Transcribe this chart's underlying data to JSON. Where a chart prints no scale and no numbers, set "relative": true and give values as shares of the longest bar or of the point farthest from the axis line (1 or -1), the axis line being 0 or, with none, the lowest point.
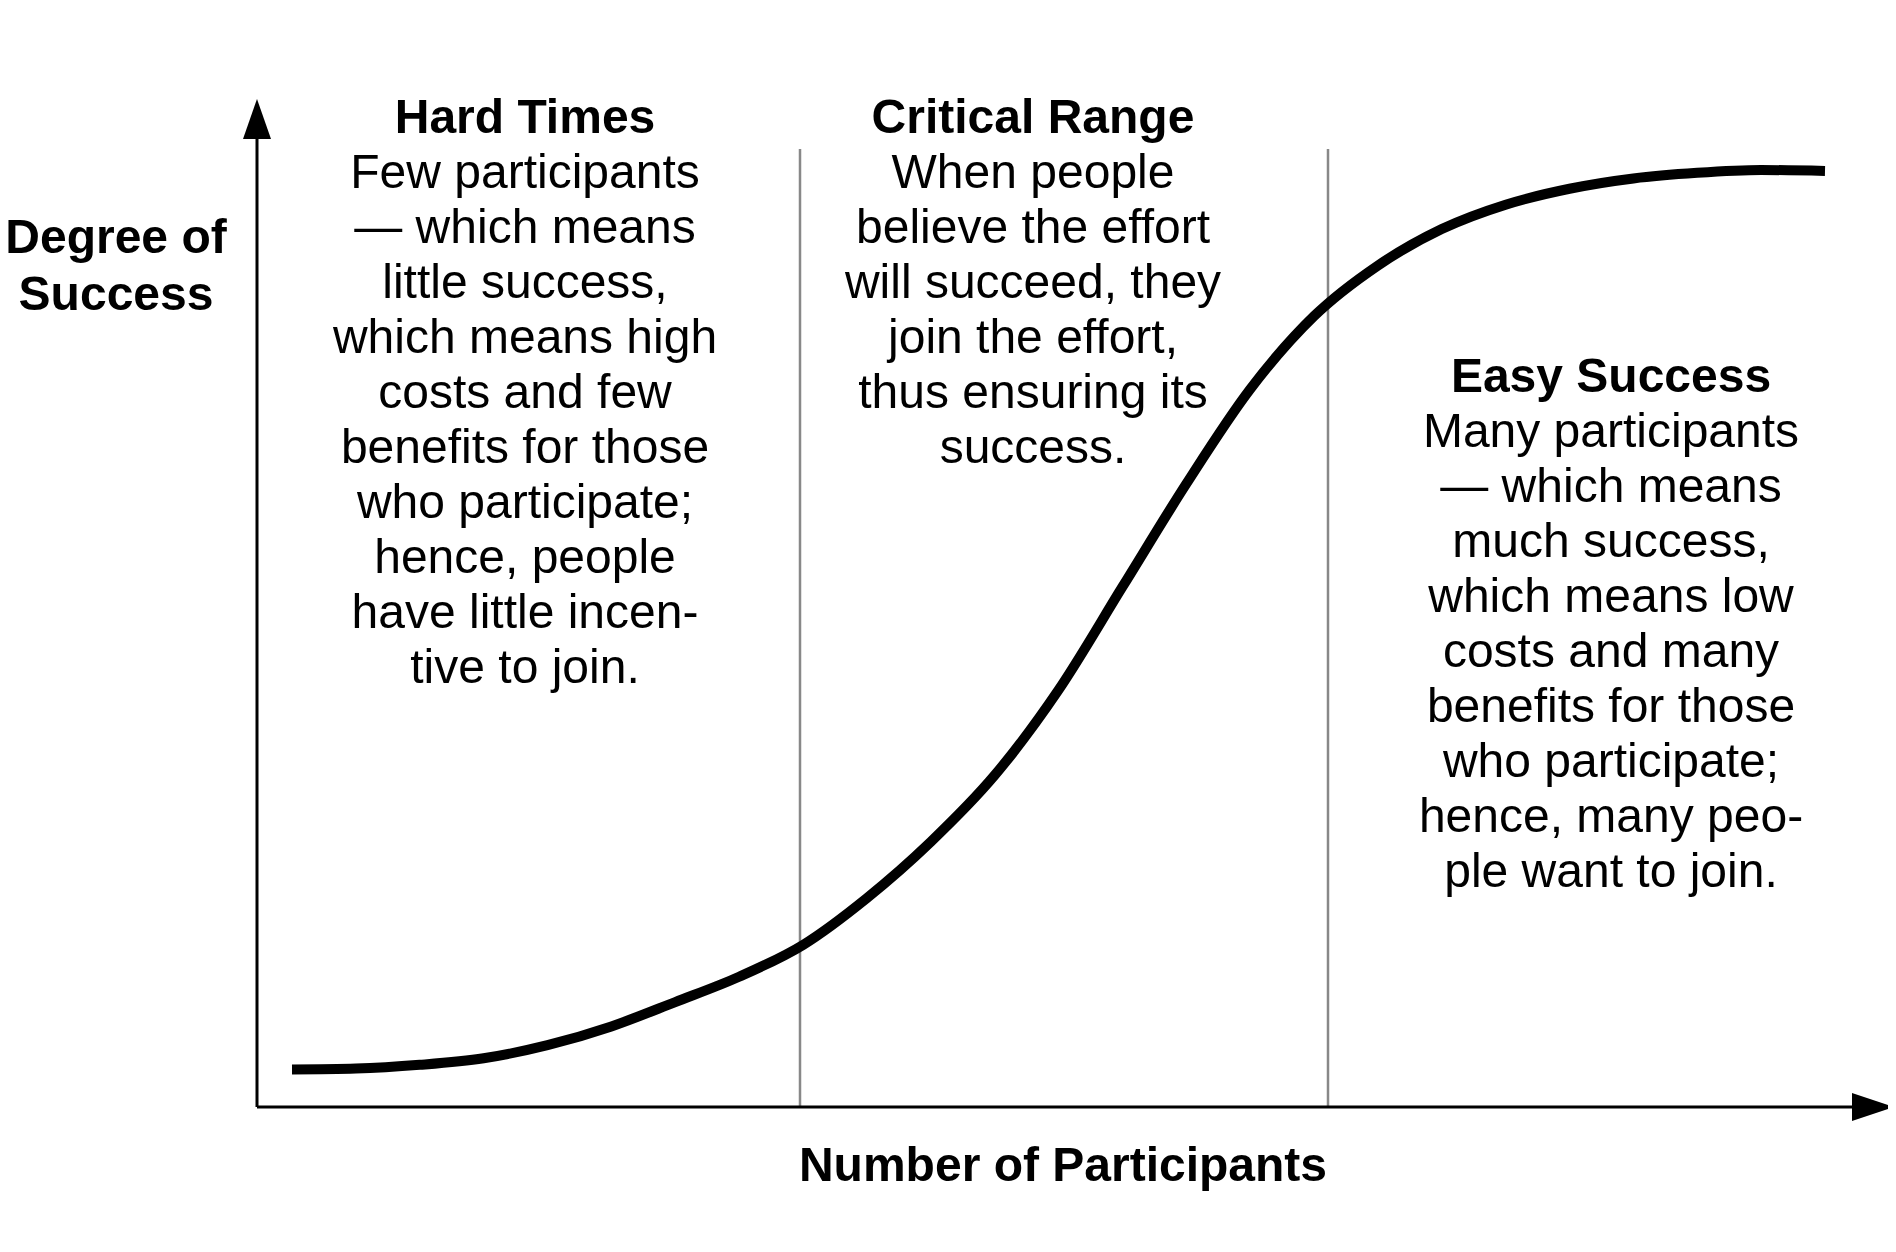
{
  "chart_data": {
    "type": "line",
    "relative": true,
    "xlabel": "Number of Participants",
    "ylabel": "Degree of\nSuccess",
    "marker": "none",
    "line_style": "solid",
    "categories": [
      null,
      null,
      null,
      null,
      null,
      null,
      null,
      null,
      null,
      null,
      null,
      null,
      null,
      null,
      null,
      null,
      null,
      null,
      null,
      null,
      null,
      null,
      null,
      null,
      null
    ],
    "series": [
      {
        "color": "#000000",
        "values": [
          0.04,
          0.041,
          0.045,
          0.052,
          0.066,
          0.086,
          0.112,
          0.139,
          0.173,
          0.223,
          0.283,
          0.354,
          0.445,
          0.555,
          0.665,
          0.766,
          0.844,
          0.898,
          0.937,
          0.963,
          0.98,
          0.991,
          0.997,
          1.0,
          0.999
        ]
      }
    ],
    "annotations": [
      "Hard Times",
      "Few participants\n— which means\nlittle success,\nwhich means high\ncosts and few\nbenefits for those\nwho participate;\nhence, people\nhave little incen-\ntive to join.",
      "Critical Range",
      "When people\nbelieve the effort\nwill succeed, they\njoin the effort,\nthus ensuring its\nsuccess.",
      "Easy Success",
      "Many participants\n— which means\nmuch success,\nwhich means low\ncosts and many\nbenefits for those\nwho participate;\nhence, many peo-\nple want to join."
    ]
  }
}
